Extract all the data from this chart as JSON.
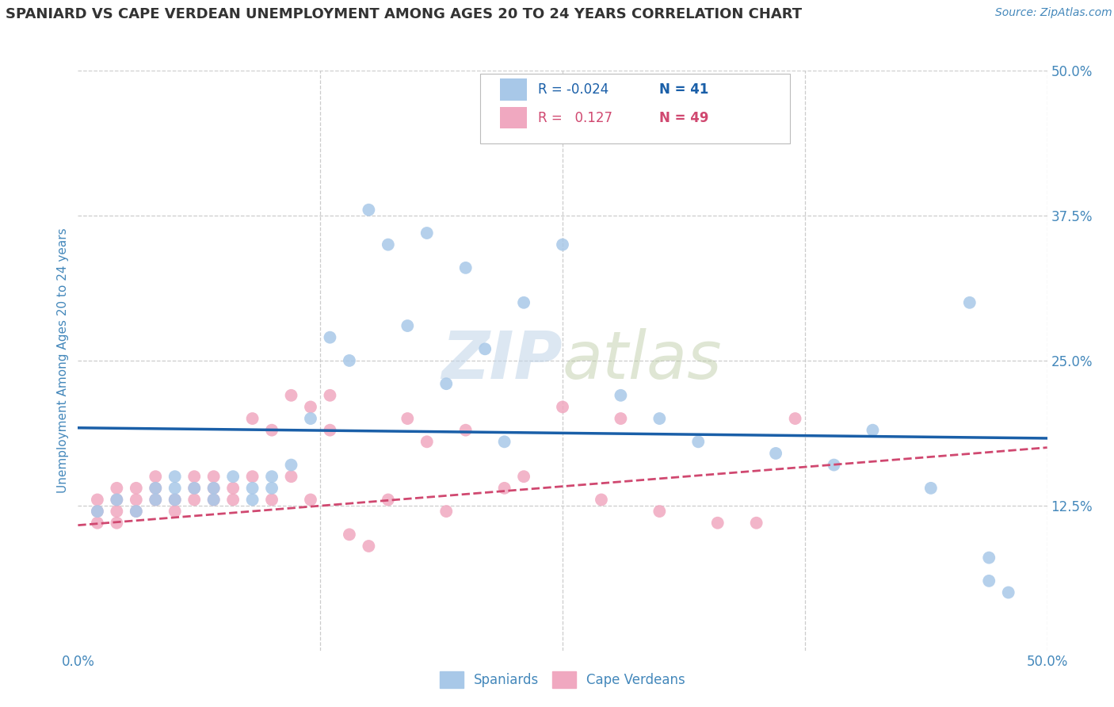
{
  "title": "SPANIARD VS CAPE VERDEAN UNEMPLOYMENT AMONG AGES 20 TO 24 YEARS CORRELATION CHART",
  "source": "Source: ZipAtlas.com",
  "ylabel": "Unemployment Among Ages 20 to 24 years",
  "xlim": [
    0.0,
    0.5
  ],
  "ylim": [
    0.0,
    0.5
  ],
  "legend_r_spaniards": "-0.024",
  "legend_n_spaniards": "41",
  "legend_r_cape": "0.127",
  "legend_n_cape": "49",
  "spaniards_color": "#a8c8e8",
  "cape_color": "#f0a8c0",
  "trend_spaniards_color": "#1a5fa8",
  "trend_cape_color": "#d04870",
  "spaniards_x": [
    0.01,
    0.02,
    0.03,
    0.04,
    0.04,
    0.05,
    0.05,
    0.05,
    0.06,
    0.07,
    0.07,
    0.08,
    0.09,
    0.09,
    0.1,
    0.1,
    0.11,
    0.12,
    0.13,
    0.14,
    0.15,
    0.16,
    0.17,
    0.18,
    0.19,
    0.2,
    0.21,
    0.22,
    0.23,
    0.25,
    0.28,
    0.3,
    0.32,
    0.36,
    0.39,
    0.41,
    0.44,
    0.46,
    0.47,
    0.47,
    0.48
  ],
  "spaniards_y": [
    0.12,
    0.13,
    0.12,
    0.14,
    0.13,
    0.14,
    0.13,
    0.15,
    0.14,
    0.13,
    0.14,
    0.15,
    0.13,
    0.14,
    0.15,
    0.14,
    0.16,
    0.2,
    0.27,
    0.25,
    0.38,
    0.35,
    0.28,
    0.36,
    0.23,
    0.33,
    0.26,
    0.18,
    0.3,
    0.35,
    0.22,
    0.2,
    0.18,
    0.17,
    0.16,
    0.19,
    0.14,
    0.3,
    0.08,
    0.06,
    0.05
  ],
  "cape_x": [
    0.01,
    0.01,
    0.01,
    0.02,
    0.02,
    0.02,
    0.02,
    0.03,
    0.03,
    0.03,
    0.04,
    0.04,
    0.04,
    0.05,
    0.05,
    0.06,
    0.06,
    0.06,
    0.07,
    0.07,
    0.07,
    0.08,
    0.08,
    0.09,
    0.09,
    0.1,
    0.1,
    0.11,
    0.11,
    0.12,
    0.12,
    0.13,
    0.13,
    0.14,
    0.15,
    0.16,
    0.17,
    0.18,
    0.19,
    0.2,
    0.22,
    0.23,
    0.25,
    0.27,
    0.28,
    0.3,
    0.33,
    0.35,
    0.37
  ],
  "cape_y": [
    0.12,
    0.13,
    0.11,
    0.13,
    0.12,
    0.14,
    0.11,
    0.13,
    0.12,
    0.14,
    0.15,
    0.14,
    0.13,
    0.13,
    0.12,
    0.14,
    0.13,
    0.15,
    0.15,
    0.14,
    0.13,
    0.14,
    0.13,
    0.15,
    0.2,
    0.19,
    0.13,
    0.22,
    0.15,
    0.21,
    0.13,
    0.19,
    0.22,
    0.1,
    0.09,
    0.13,
    0.2,
    0.18,
    0.12,
    0.19,
    0.14,
    0.15,
    0.21,
    0.13,
    0.2,
    0.12,
    0.11,
    0.11,
    0.2
  ],
  "trend_sp_x0": 0.0,
  "trend_sp_x1": 0.5,
  "trend_sp_y0": 0.192,
  "trend_sp_y1": 0.183,
  "trend_cv_x0": 0.0,
  "trend_cv_x1": 0.5,
  "trend_cv_y0": 0.108,
  "trend_cv_y1": 0.175,
  "background_color": "#ffffff",
  "grid_color": "#cccccc",
  "axis_color": "#4488bb",
  "title_color": "#333333",
  "title_fontsize": 13,
  "source_fontsize": 10
}
